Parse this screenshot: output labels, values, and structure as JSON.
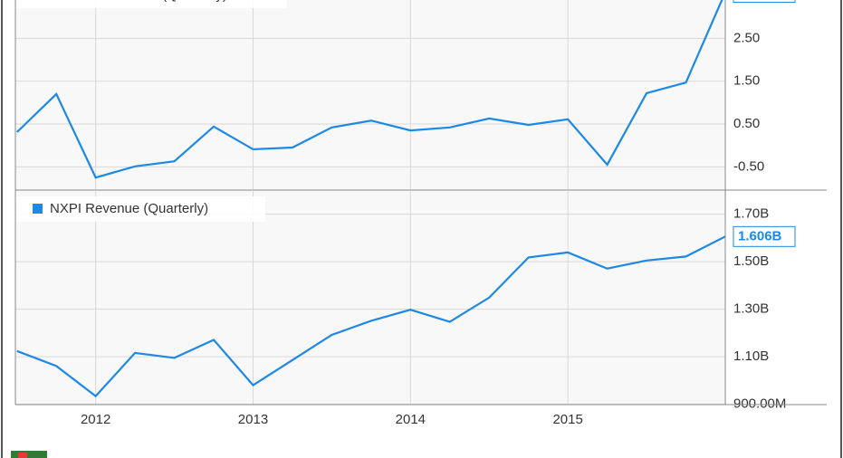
{
  "chart_data": [
    {
      "type": "line",
      "series": [
        {
          "name": "NXPI EPS Diluted (Quarterly)",
          "color": "#1e88e5",
          "values": [
            0.31,
            1.2,
            -0.75,
            -0.49,
            -0.37,
            0.44,
            -0.09,
            -0.05,
            0.42,
            0.58,
            0.35,
            0.42,
            0.63,
            0.48,
            0.61,
            -0.45,
            1.22,
            1.47,
            3.577
          ]
        }
      ],
      "x": [
        2011.5,
        2011.75,
        2012,
        2012.25,
        2012.5,
        2012.75,
        2013,
        2013.25,
        2013.5,
        2013.75,
        2014,
        2014.25,
        2014.5,
        2014.75,
        2015,
        2015.25,
        2015.5,
        2015.75,
        2016
      ],
      "xlim": [
        2011.49,
        2016
      ],
      "xticks": [
        2012,
        2013,
        2014,
        2015
      ],
      "ylim": [
        -1.043,
        3.397
      ],
      "yticks": [
        {
          "value": -0.5,
          "label": "-0.50"
        },
        {
          "value": 0.5,
          "label": "0.50"
        },
        {
          "value": 1.5,
          "label": "1.50"
        },
        {
          "value": 2.5,
          "label": "2.50"
        }
      ],
      "grid": true
    },
    {
      "type": "line",
      "series": [
        {
          "name": "NXPI Revenue (Quarterly)",
          "color": "#1e88e5",
          "values": [
            1124000000,
            1061000000,
            934000000,
            1116000000,
            1095000000,
            1171000000,
            980000000,
            1086000000,
            1192000000,
            1251000000,
            1298000000,
            1247000000,
            1349000000,
            1518000000,
            1539000000,
            1471000000,
            1505000000,
            1522000000,
            1606000000
          ],
          "value_labels": [
            null,
            null,
            null,
            null,
            null,
            null,
            null,
            null,
            null,
            null,
            null,
            null,
            null,
            null,
            null,
            null,
            null,
            null,
            "1.606B"
          ]
        }
      ],
      "x": [
        2011.5,
        2011.75,
        2012,
        2012.25,
        2012.5,
        2012.75,
        2013,
        2013.25,
        2013.5,
        2013.75,
        2014,
        2014.25,
        2014.5,
        2014.75,
        2015,
        2015.25,
        2015.5,
        2015.75,
        2016
      ],
      "xlim": [
        2011.49,
        2016
      ],
      "xticks": [
        2012,
        2013,
        2014,
        2015
      ],
      "ylim": [
        898400000,
        1801600000
      ],
      "yticks": [
        {
          "value": 900000000,
          "label": "900.00M"
        },
        {
          "value": 1100000000,
          "label": "1.10B"
        },
        {
          "value": 1300000000,
          "label": "1.30B"
        },
        {
          "value": 1500000000,
          "label": "1.50B"
        },
        {
          "value": 1700000000,
          "label": "1.70B"
        }
      ],
      "grid": true
    }
  ]
}
